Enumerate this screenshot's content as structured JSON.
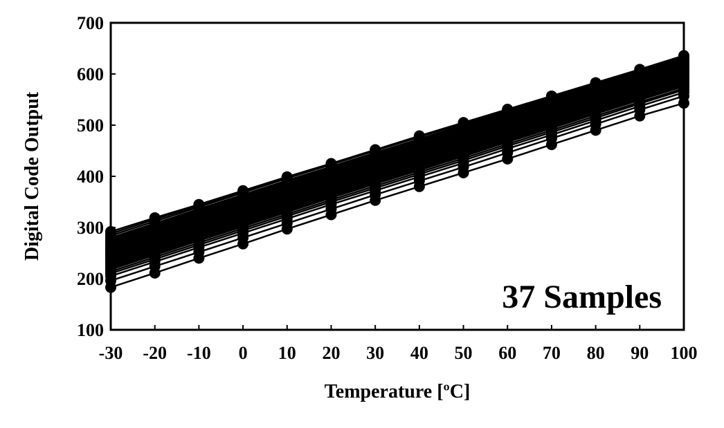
{
  "chart_data": {
    "type": "line",
    "title": "",
    "xlabel": "Temperature [ºC]",
    "ylabel": "Digital Code Output",
    "annotation": "37 Samples",
    "x": [
      -30,
      -20,
      -10,
      0,
      10,
      20,
      30,
      40,
      50,
      60,
      70,
      80,
      90,
      100
    ],
    "xlim": [
      -30,
      100
    ],
    "ylim": [
      100,
      700
    ],
    "x_ticks": [
      "-30",
      "-20",
      "-10",
      "0",
      "10",
      "20",
      "30",
      "40",
      "50",
      "60",
      "70",
      "80",
      "90",
      "100"
    ],
    "y_ticks": [
      "100",
      "200",
      "300",
      "400",
      "500",
      "600",
      "700"
    ],
    "grid": false,
    "legend": "none",
    "line_color": "#000000",
    "marker": "filled-circle",
    "series": [
      {
        "values": [
          183,
          211,
          240,
          268,
          297,
          325,
          353,
          380,
          407,
          434,
          462,
          490,
          518,
          543
        ]
      },
      {
        "values": [
          196,
          224,
          252,
          280,
          308,
          336,
          364,
          391,
          418,
          446,
          474,
          502,
          530,
          557
        ]
      },
      {
        "values": [
          205,
          233,
          261,
          289,
          317,
          345,
          372,
          399,
          426,
          454,
          481,
          509,
          537,
          564
        ]
      },
      {
        "values": [
          210,
          238,
          266,
          294,
          322,
          350,
          377,
          404,
          431,
          459,
          486,
          514,
          542,
          569
        ]
      },
      {
        "values": [
          214,
          242,
          270,
          298,
          326,
          354,
          381,
          408,
          435,
          463,
          490,
          518,
          545,
          572
        ]
      },
      {
        "values": [
          218,
          246,
          274,
          302,
          330,
          358,
          385,
          412,
          439,
          467,
          494,
          522,
          549,
          576
        ]
      },
      {
        "values": [
          221,
          249,
          277,
          305,
          333,
          361,
          388,
          415,
          442,
          470,
          497,
          525,
          552,
          579
        ]
      },
      {
        "values": [
          224,
          252,
          280,
          308,
          336,
          364,
          391,
          418,
          445,
          473,
          500,
          528,
          555,
          582
        ]
      },
      {
        "values": [
          227,
          255,
          283,
          311,
          339,
          367,
          394,
          421,
          448,
          476,
          503,
          531,
          558,
          585
        ]
      },
      {
        "values": [
          230,
          258,
          286,
          314,
          342,
          370,
          397,
          424,
          451,
          479,
          506,
          534,
          561,
          588
        ]
      },
      {
        "values": [
          232,
          260,
          288,
          316,
          344,
          372,
          399,
          426,
          453,
          481,
          508,
          536,
          563,
          590
        ]
      },
      {
        "values": [
          234,
          262,
          290,
          318,
          346,
          374,
          401,
          428,
          455,
          483,
          510,
          538,
          565,
          592
        ]
      },
      {
        "values": [
          236,
          264,
          292,
          320,
          348,
          376,
          403,
          430,
          457,
          485,
          512,
          540,
          567,
          594
        ]
      },
      {
        "values": [
          238,
          266,
          294,
          322,
          350,
          378,
          405,
          432,
          459,
          487,
          514,
          542,
          569,
          596
        ]
      },
      {
        "values": [
          240,
          268,
          296,
          324,
          352,
          380,
          407,
          434,
          461,
          488,
          515,
          543,
          570,
          597
        ]
      },
      {
        "values": [
          242,
          270,
          298,
          326,
          354,
          382,
          409,
          436,
          463,
          490,
          517,
          545,
          572,
          599
        ]
      },
      {
        "values": [
          244,
          272,
          300,
          328,
          356,
          384,
          411,
          438,
          465,
          492,
          519,
          547,
          574,
          601
        ]
      },
      {
        "values": [
          246,
          274,
          302,
          330,
          358,
          386,
          413,
          440,
          467,
          494,
          521,
          549,
          576,
          603
        ]
      },
      {
        "values": [
          248,
          276,
          304,
          332,
          360,
          387,
          414,
          441,
          468,
          495,
          522,
          550,
          577,
          604
        ]
      },
      {
        "values": [
          250,
          278,
          306,
          334,
          362,
          389,
          416,
          443,
          470,
          497,
          524,
          552,
          579,
          606
        ]
      },
      {
        "values": [
          252,
          280,
          308,
          336,
          364,
          391,
          418,
          445,
          472,
          499,
          526,
          554,
          581,
          608
        ]
      },
      {
        "values": [
          254,
          282,
          310,
          338,
          366,
          393,
          420,
          447,
          474,
          501,
          528,
          556,
          583,
          610
        ]
      },
      {
        "values": [
          256,
          284,
          312,
          340,
          368,
          395,
          422,
          449,
          476,
          503,
          530,
          558,
          585,
          612
        ]
      },
      {
        "values": [
          258,
          286,
          314,
          342,
          370,
          397,
          424,
          451,
          478,
          505,
          532,
          560,
          587,
          614
        ]
      },
      {
        "values": [
          260,
          288,
          316,
          344,
          372,
          399,
          426,
          453,
          480,
          507,
          534,
          562,
          589,
          616
        ]
      },
      {
        "values": [
          262,
          290,
          318,
          346,
          374,
          401,
          428,
          455,
          482,
          509,
          536,
          564,
          591,
          618
        ]
      },
      {
        "values": [
          264,
          292,
          320,
          348,
          376,
          403,
          430,
          457,
          484,
          511,
          538,
          566,
          593,
          620
        ]
      },
      {
        "values": [
          266,
          294,
          322,
          350,
          378,
          405,
          432,
          459,
          486,
          513,
          540,
          568,
          595,
          622
        ]
      },
      {
        "values": [
          268,
          296,
          324,
          352,
          380,
          407,
          434,
          461,
          488,
          515,
          542,
          570,
          597,
          624
        ]
      },
      {
        "values": [
          270,
          298,
          326,
          354,
          382,
          409,
          436,
          463,
          490,
          517,
          544,
          572,
          599,
          626
        ]
      },
      {
        "values": [
          272,
          300,
          328,
          356,
          384,
          411,
          438,
          465,
          492,
          519,
          546,
          574,
          601,
          627
        ]
      },
      {
        "values": [
          274,
          302,
          330,
          358,
          386,
          413,
          440,
          467,
          494,
          521,
          548,
          576,
          603,
          628
        ]
      },
      {
        "values": [
          277,
          305,
          333,
          361,
          389,
          416,
          443,
          470,
          497,
          524,
          551,
          578,
          605,
          629
        ]
      },
      {
        "values": [
          280,
          308,
          336,
          364,
          392,
          419,
          446,
          473,
          500,
          527,
          554,
          580,
          606,
          630
        ]
      },
      {
        "values": [
          284,
          312,
          340,
          368,
          396,
          423,
          450,
          477,
          503,
          529,
          555,
          581,
          607,
          632
        ]
      },
      {
        "values": [
          288,
          316,
          343,
          370,
          398,
          424,
          451,
          478,
          504,
          530,
          556,
          582,
          608,
          634
        ]
      },
      {
        "values": [
          292,
          319,
          345,
          372,
          399,
          425,
          452,
          479,
          505,
          531,
          557,
          583,
          609,
          636
        ]
      }
    ]
  }
}
